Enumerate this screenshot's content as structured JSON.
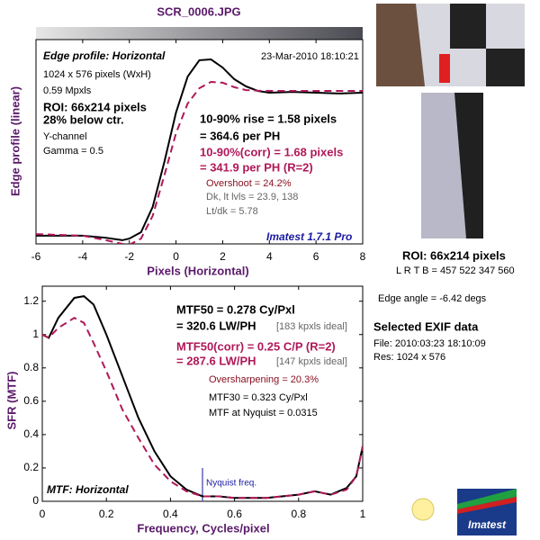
{
  "chart_data": [
    {
      "type": "line",
      "title": "SCR_0006.JPG",
      "x": [
        -6,
        -4,
        -3,
        -2.3,
        -2,
        -1.5,
        -1,
        -0.5,
        0,
        0.5,
        1,
        1.5,
        2,
        2.5,
        3,
        3.5,
        4,
        5,
        6,
        7,
        8
      ],
      "series": [
        {
          "color": "#000000",
          "dashed": false,
          "values": [
            0.04,
            0.04,
            0.03,
            0.018,
            0.026,
            0.057,
            0.181,
            0.401,
            0.643,
            0.819,
            0.899,
            0.903,
            0.863,
            0.806,
            0.771,
            0.749,
            0.74,
            0.744,
            0.74,
            0.736,
            0.74
          ]
        },
        {
          "color": "#b0185a",
          "dashed": true,
          "values": [
            0.048,
            0.04,
            0.018,
            0.0,
            -0.004,
            0.026,
            0.137,
            0.335,
            0.542,
            0.687,
            0.762,
            0.793,
            0.789,
            0.767,
            0.753,
            0.75,
            0.749,
            0.749,
            0.749,
            0.749,
            0.749
          ]
        }
      ],
      "xlim": [
        -6,
        8
      ],
      "xticks": [
        -6,
        -4,
        -2,
        0,
        2,
        4,
        6,
        8
      ],
      "ylim": [
        0,
        1
      ],
      "xlabel": "Pixels (Horizontal)",
      "ylabel": "Edge profile (linear)",
      "annotations": [
        "Edge profile: Horizontal",
        "23-Mar-2010 18:10:21",
        "1024 x 576 pixels (WxH)",
        "0.59 Mpxls",
        "ROI: 66x214 pixels",
        "28% below ctr.",
        "Y-channel",
        "Gamma = 0.5",
        "10-90% rise = 1.58 pixels",
        "= 364.6 per PH",
        "10-90%(corr) = 1.68 pixels",
        "= 341.9 per PH  (R=2)",
        "Overshoot = 24.2%",
        "Dk, lt lvls = 23.9, 138",
        "Lt/dk = 5.78",
        "Imatest 1.7.1 Pro"
      ]
    },
    {
      "type": "line",
      "x": [
        0,
        0.02,
        0.05,
        0.1,
        0.13,
        0.16,
        0.2,
        0.25,
        0.3,
        0.35,
        0.4,
        0.45,
        0.5,
        0.55,
        0.6,
        0.7,
        0.8,
        0.85,
        0.9,
        0.95,
        0.98,
        1
      ],
      "series": [
        {
          "color": "#000000",
          "dashed": false,
          "values": [
            1.0,
            0.98,
            1.1,
            1.22,
            1.23,
            1.18,
            1.0,
            0.75,
            0.5,
            0.3,
            0.15,
            0.07,
            0.03,
            0.03,
            0.02,
            0.02,
            0.04,
            0.06,
            0.04,
            0.08,
            0.15,
            0.33
          ]
        },
        {
          "color": "#b0185a",
          "dashed": true,
          "values": [
            1.0,
            0.98,
            1.04,
            1.1,
            1.07,
            0.95,
            0.78,
            0.55,
            0.38,
            0.22,
            0.12,
            0.06,
            0.03,
            0.03,
            0.02,
            0.02,
            0.04,
            0.06,
            0.04,
            0.07,
            0.15,
            0.33
          ]
        }
      ],
      "xlim": [
        0,
        1
      ],
      "xticks": [
        0,
        0.2,
        0.4,
        0.6,
        0.8,
        1
      ],
      "ylim": [
        0,
        1.29
      ],
      "yticks": [
        0,
        0.2,
        0.4,
        0.6,
        0.8,
        1,
        1.2
      ],
      "nyquist": 0.5,
      "nyquist_label": "Nyquist freq.",
      "xlabel": "Frequency, Cycles/pixel",
      "ylabel": "SFR (MTF)",
      "annotations": [
        "MTF50 = 0.278 Cy/Pxl",
        "= 320.6 LW/PH",
        "[183 kpxls ideal]",
        "MTF50(corr) = 0.25 C/P  (R=2)",
        "= 287.6 LW/PH",
        "[147 kpxls ideal]",
        "Oversharpening = 20.3%",
        "MTF30 = 0.323 Cy/Pxl",
        "MTF at Nyquist = 0.0315",
        "MTF: Horizontal"
      ]
    }
  ],
  "panel": {
    "roi": "ROI: 66x214 pixels",
    "lrtb": "L R T B = 457 522  347 560",
    "edge_angle": "Edge angle = -6.42 degs",
    "exif_title": "Selected EXIF data",
    "file": "File:  2010:03:23 18:10:09",
    "res": "Res:    1024 x 576",
    "logo": "Imatest"
  }
}
